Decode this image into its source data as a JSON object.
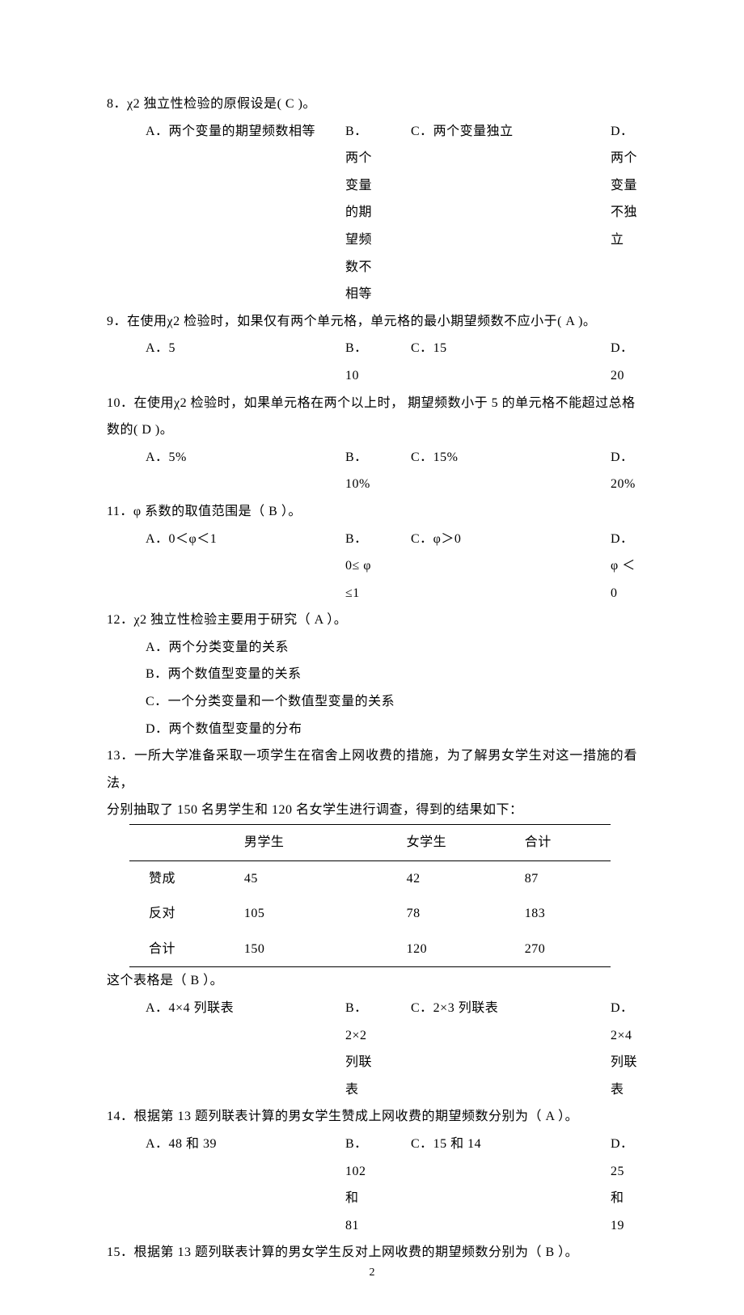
{
  "questions": [
    {
      "stem": "8．χ2 独立性检验的原假设是(    C    )。",
      "style": "2col",
      "opts": {
        "A": "A．两个变量的期望频数相等",
        "B": "B．两个变量的期望频数不相等",
        "C": "C．两个变量独立",
        "D": "D．两个变量不独立"
      }
    },
    {
      "stem": "9．在使用χ2 检验时，如果仅有两个单元格，单元格的最小期望频数不应小于(    A    )。",
      "style": "2col",
      "opts": {
        "A": "A．5",
        "B": "B．10",
        "C": "C．15",
        "D": "D．20"
      }
    },
    {
      "stem_lines": [
        "10．在使用χ2 检验时，如果单元格在两个以上时，  期望频数小于 5 的单元格不能超过总格",
        "数的(    D    )。"
      ],
      "style": "2col",
      "opts": {
        "A": "A．5%",
        "B": "B．10%",
        "C": "C．15%",
        "D": "D．20%"
      }
    },
    {
      "stem": "11．φ 系数的取值范围是（    B    ）。",
      "style": "2col",
      "opts": {
        "A": "A．0＜φ＜1",
        "B": "B．0≤ φ ≤1",
        "C": "C．φ＞0",
        "D": "D．φ ＜0"
      }
    },
    {
      "stem": "12．χ2 独立性检验主要用于研究（    A    ）。",
      "style": "1col",
      "opts": {
        "A": "A．两个分类变量的关系",
        "B": "B．两个数值型变量的关系",
        "C": "C．一个分类变量和一个数值型变量的关系",
        "D": "D．两个数值型变量的分布"
      }
    }
  ],
  "q13_stem_lines": [
    "13．一所大学准备采取一项学生在宿舍上网收费的措施，为了解男女学生对这一措施的看法，",
    "分别抽取了 150 名男学生和 120 名女学生进行调查，得到的结果如下："
  ],
  "table": {
    "columns": [
      "",
      "男学生",
      "女学生",
      "合计"
    ],
    "rows": [
      [
        "赞成",
        "45",
        "42",
        "87"
      ],
      [
        "反对",
        "105",
        "78",
        "183"
      ],
      [
        "合计",
        "150",
        "120",
        "270"
      ]
    ]
  },
  "q13_after": "这个表格是（    B       ）。",
  "q13_opts": {
    "A": "A．4×4 列联表",
    "B": "B．2×2 列联表",
    "C": "C．2×3 列联表",
    "D": "D．2×4 列联表"
  },
  "q14": {
    "stem": "14．根据第 13 题列联表计算的男女学生赞成上网收费的期望频数分别为（    A       ）。",
    "opts": {
      "A": "A．48 和 39",
      "B": "B．102 和 81",
      "C": "C．15 和 14",
      "D": "D．25 和 19"
    }
  },
  "q15_stem": "15．根据第 13 题列联表计算的男女学生反对上网收费的期望频数分别为（    B    ）。",
  "page_number": "2"
}
